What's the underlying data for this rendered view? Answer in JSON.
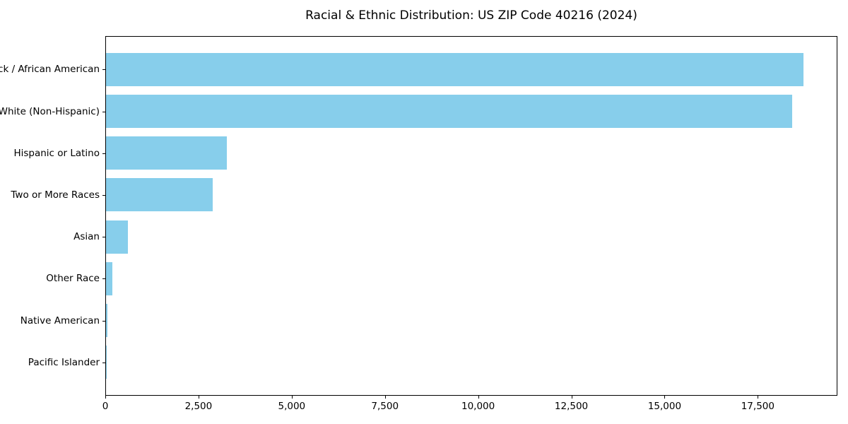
{
  "chart_data": {
    "type": "bar",
    "orientation": "horizontal",
    "title": "Racial & Ethnic Distribution: US ZIP Code 40216 (2024)",
    "categories": [
      "Black / African American",
      "White (Non-Hispanic)",
      "Hispanic or Latino",
      "Two or More Races",
      "Asian",
      "Other Race",
      "Native American",
      "Pacific Islander"
    ],
    "values": [
      18700,
      18400,
      3240,
      2860,
      590,
      175,
      30,
      5
    ],
    "xlabel": "",
    "ylabel": "",
    "xlim": [
      0,
      19635
    ],
    "xticks": [
      0,
      2500,
      5000,
      7500,
      10000,
      12500,
      15000,
      17500
    ],
    "xtick_labels": [
      "0",
      "2,500",
      "5,000",
      "7,500",
      "10,000",
      "12,500",
      "15,000",
      "17,500"
    ],
    "bar_color": "#87CEEB",
    "axis_color": "#000000",
    "background_color": "#ffffff",
    "grid": false,
    "legend_position": "none"
  }
}
